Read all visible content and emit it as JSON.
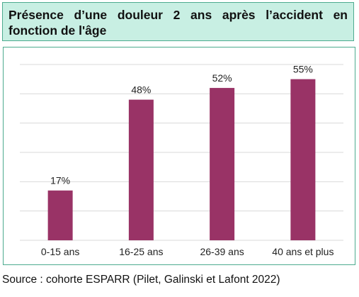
{
  "title": "Présence d’une douleur 2 ans après l’accident en fonction de l'âge",
  "source": "Source : cohorte ESPARR (Pilet, Galinski et Lafont 2022)",
  "colors": {
    "bar": "#993366",
    "grid": "#d9d9d9",
    "frame": "#4dab8f",
    "title_bg": "#c8efe3"
  },
  "chart_data": {
    "type": "bar",
    "categories": [
      "0-15 ans",
      "16-25 ans",
      "26-39 ans",
      "40 ans et plus"
    ],
    "values": [
      17,
      48,
      52,
      55
    ],
    "labels": [
      "17%",
      "48%",
      "52%",
      "55%"
    ],
    "ylim": [
      0,
      60
    ],
    "gridlines": [
      0,
      10,
      20,
      30,
      40,
      50,
      60
    ],
    "grid": true,
    "legend": "none"
  }
}
